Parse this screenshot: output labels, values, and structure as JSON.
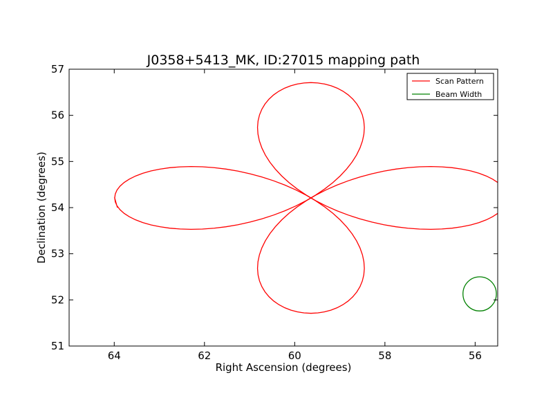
{
  "chart_data": {
    "type": "line",
    "title": "J0358+5413_MK, ID:27015 mapping path",
    "xlabel": "Right Ascension (degrees)",
    "ylabel": "Declination (degrees)",
    "xlim": [
      65.0,
      55.5
    ],
    "ylim": [
      51,
      57
    ],
    "x_inverted": true,
    "xticks": [
      64,
      62,
      60,
      58,
      56
    ],
    "xtick_labels": [
      "64",
      "62",
      "60",
      "58",
      "56"
    ],
    "yticks": [
      51,
      52,
      53,
      54,
      55,
      56,
      57
    ],
    "ytick_labels": [
      "51",
      "52",
      "53",
      "54",
      "55",
      "56",
      "57"
    ],
    "grid": false,
    "legend_position": "top-right",
    "center": {
      "ra": 59.64,
      "dec": 54.21
    },
    "series": [
      {
        "name": "Scan Pattern",
        "color": "#ff0000",
        "kind": "rose",
        "petals": 4,
        "ra_radius": 4.35,
        "dec_radius": 2.5,
        "ra_start": 63.93,
        "dec_start": 54.0,
        "ra_end": 64.0,
        "dec_end": 54.22
      },
      {
        "name": "Beam Width",
        "color": "#008000",
        "kind": "circle",
        "center_ra": 55.9,
        "center_dec": 52.13,
        "radius": 0.37
      }
    ]
  }
}
